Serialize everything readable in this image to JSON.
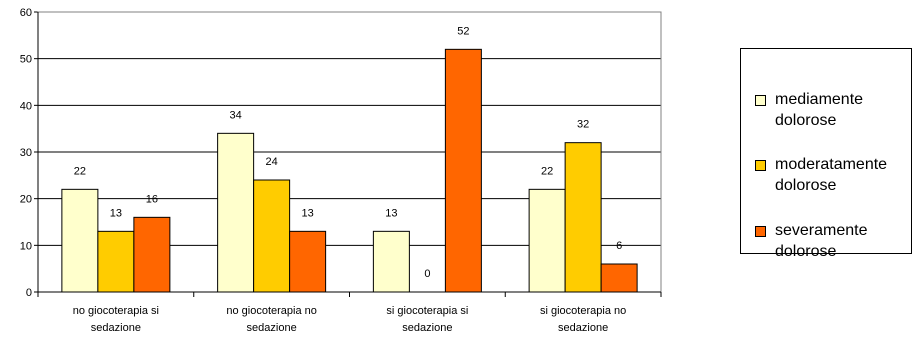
{
  "chart_data": {
    "type": "bar",
    "categories": [
      [
        "no giocoterapia si",
        "sedazione"
      ],
      [
        "no giocoterapia no",
        "sedazione"
      ],
      [
        "si giocoterapia si",
        "sedazione"
      ],
      [
        "si giocoterapia no",
        "sedazione"
      ]
    ],
    "series": [
      {
        "name": "mediamente dolorose",
        "color": "#FFFFCC",
        "values": [
          22,
          34,
          13,
          22
        ]
      },
      {
        "name": "moderatamente dolorose",
        "color": "#FFCC00",
        "values": [
          13,
          24,
          0,
          32
        ]
      },
      {
        "name": "severamente dolorose",
        "color": "#FF6600",
        "values": [
          16,
          13,
          52,
          6
        ]
      }
    ],
    "ylim": [
      0,
      60
    ],
    "yticks": [
      0,
      10,
      20,
      30,
      40,
      50,
      60
    ],
    "grid": true,
    "data_labels": true,
    "legend_position": "right"
  },
  "legend": {
    "items": [
      {
        "line1": "mediamente",
        "line2": "dolorose",
        "color": "#FFFFCC"
      },
      {
        "line1": "moderatamente",
        "line2": "dolorose",
        "color": "#FFCC00"
      },
      {
        "line1": "severamente",
        "line2": "dolorose",
        "color": "#FF6600"
      }
    ]
  }
}
